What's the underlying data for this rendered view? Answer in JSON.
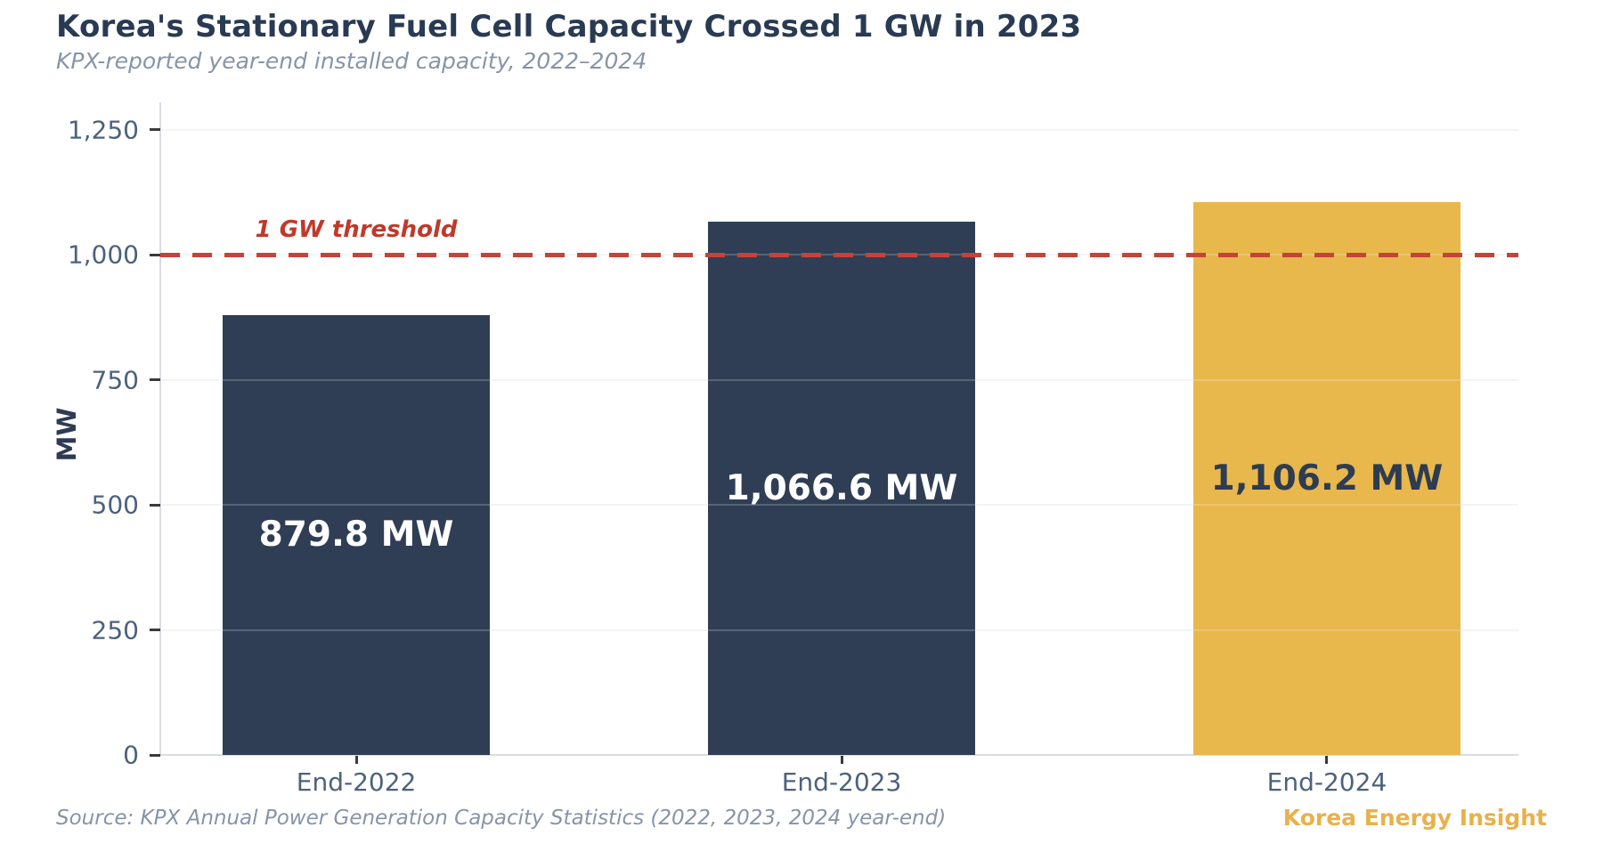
{
  "header": {
    "title": "Korea's Stationary Fuel Cell Capacity Crossed 1 GW in 2023",
    "subtitle": "KPX-reported year-end installed capacity, 2022–2024"
  },
  "footer": {
    "source": "Source: KPX Annual Power Generation Capacity Statistics (2022, 2023, 2024 year-end)",
    "brand": "Korea Energy Insight"
  },
  "colors": {
    "bar_navy": "#2f3e54",
    "bar_gold": "#e8b84d",
    "threshold_red": "#c4433a",
    "threshold_label_red": "#c0392b",
    "brand_gold": "#e8b14a",
    "title_navy": "#293a53",
    "tick_slate": "#4c627c",
    "muted_gray_blue": "#8794a8"
  },
  "chart_data": {
    "type": "bar",
    "title": "Korea's Stationary Fuel Cell Capacity Crossed 1 GW in 2023",
    "subtitle": "KPX-reported year-end installed capacity, 2022–2024",
    "categories": [
      "End-2022",
      "End-2023",
      "End-2024"
    ],
    "values": [
      879.8,
      1066.6,
      1106.2
    ],
    "value_labels": [
      "879.8 MW",
      "1,066.6 MW",
      "1,106.2 MW"
    ],
    "bar_colors": [
      "#2f3e54",
      "#2f3e54",
      "#e8b84d"
    ],
    "value_label_colors": [
      "#ffffff",
      "#ffffff",
      "#2e3c52"
    ],
    "xlabel": "",
    "ylabel": "MW",
    "ylim": [
      0,
      1305
    ],
    "yticks": {
      "values": [
        0,
        250,
        500,
        750,
        1000,
        1250
      ],
      "labels": [
        "0",
        "250",
        "500",
        "750",
        "1,000",
        "1,250"
      ]
    },
    "grid": "horizontal",
    "legend": "none",
    "threshold": {
      "value": 1000,
      "label": "1 GW threshold"
    },
    "layout": {
      "first_center_frac": 0.1443,
      "last_center_frac": 0.859,
      "bar_width_frac_of_pitch": 0.549
    }
  }
}
